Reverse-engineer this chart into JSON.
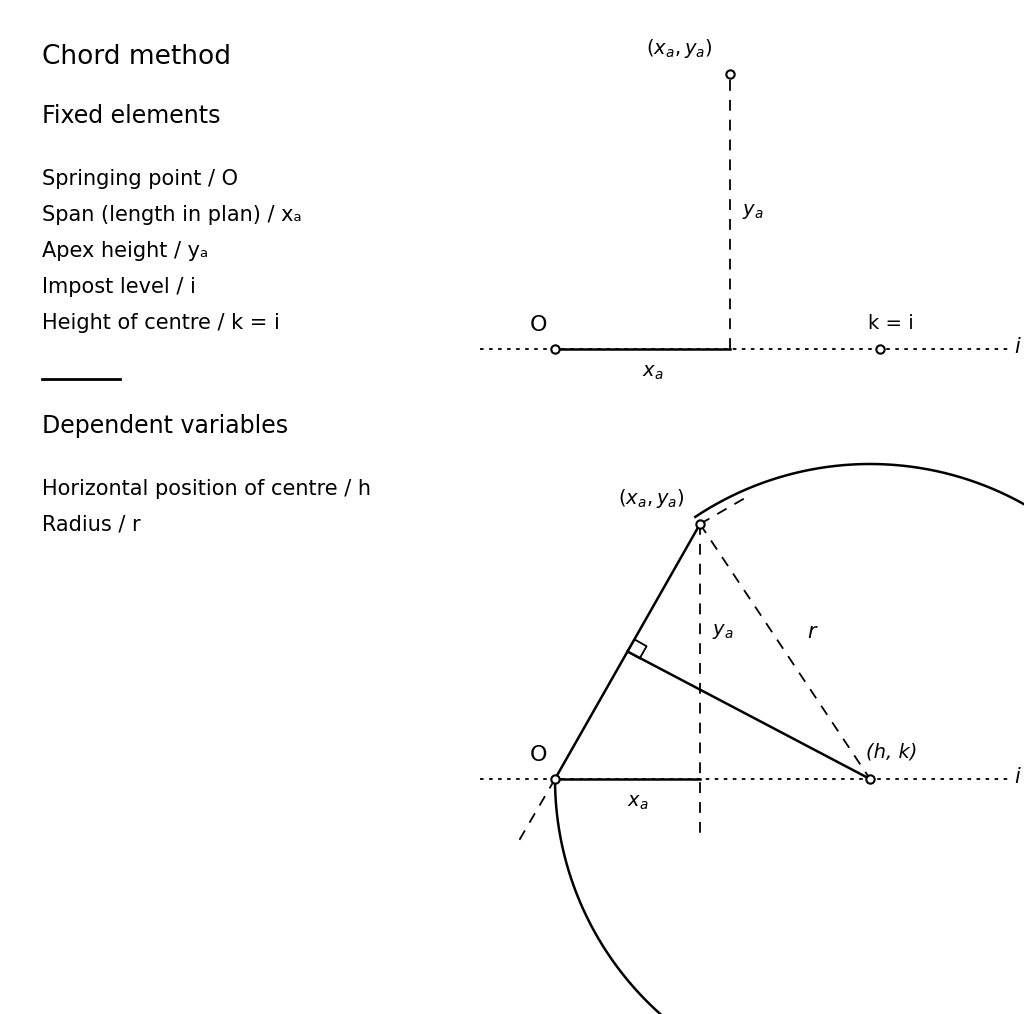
{
  "title": "Chord method",
  "fixed_label": "Fixed elements",
  "fixed_items": [
    "Springing point / O",
    "Span (length in plan) / xₐ",
    "Apex height / yₐ",
    "Impost level / i",
    "Height of centre / k = i"
  ],
  "dep_label": "Dependent variables",
  "dep_items": [
    "Horizontal position of centre / h",
    "Radius / r"
  ],
  "bg_color": "#ffffff",
  "line_color": "#000000",
  "font_size_title": 19,
  "font_size_label": 17,
  "font_size_item": 15,
  "font_size_diag": 14
}
